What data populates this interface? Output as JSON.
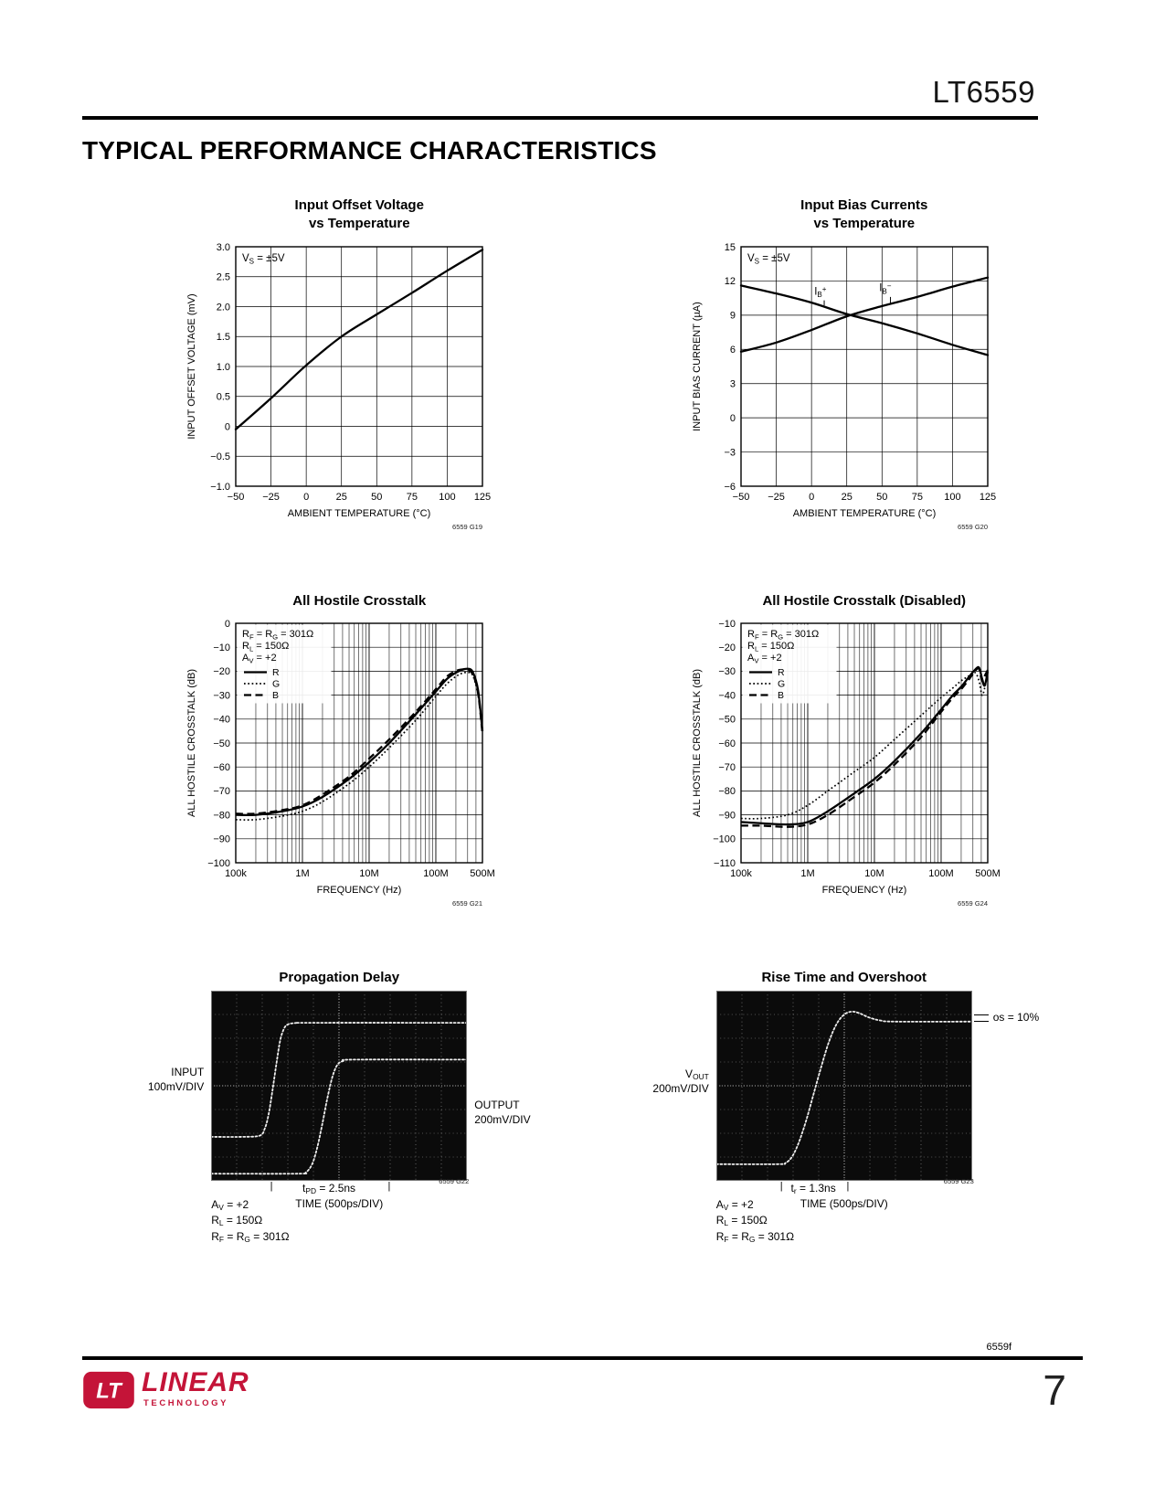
{
  "page": {
    "part_number": "LT6559",
    "section_title": "TYPICAL PERFORMANCE CHARACTERISTICS",
    "footer_doc_code": "6559f",
    "page_number": "7",
    "brand": {
      "mark": "LT",
      "name": "LINEAR",
      "sub": "TECHNOLOGY"
    },
    "colors": {
      "accent_red": "#C41438",
      "ink": "#000000",
      "scope_bg": "#0b0b0b",
      "scope_trace": "#ededed",
      "scope_grid": "#9a9a9a",
      "scope_center": "#cfcfcf"
    }
  },
  "chart_data": [
    {
      "id": "6559 G19",
      "kind": "linear",
      "type": "line",
      "title": "Input Offset Voltage",
      "title2": "vs Temperature",
      "xlabel": "AMBIENT TEMPERATURE (°C)",
      "ylabel": "INPUT OFFSET VOLTAGE (mV)",
      "xlim": [
        -50,
        125
      ],
      "ylim": [
        -1,
        3
      ],
      "xticks": [
        -50,
        -25,
        0,
        25,
        50,
        75,
        100,
        125
      ],
      "xtick_labels": [
        "−50",
        "−25",
        "0",
        "25",
        "50",
        "75",
        "100",
        "125"
      ],
      "yticks": [
        3,
        2.5,
        2,
        1.5,
        1,
        0.5,
        0,
        -0.5,
        -1
      ],
      "ytick_labels": [
        "3.0",
        "2.5",
        "2.0",
        "1.5",
        "1.0",
        "0.5",
        "0",
        "−0.5",
        "−1.0"
      ],
      "annotation": "V~S~ = ±5V",
      "series": [
        {
          "name": "VOS",
          "style": "solid",
          "x": [
            -50,
            -25,
            0,
            25,
            50,
            75,
            100,
            125
          ],
          "y": [
            -0.05,
            0.47,
            1.02,
            1.5,
            1.87,
            2.23,
            2.6,
            2.95
          ]
        }
      ]
    },
    {
      "id": "6559 G20",
      "kind": "linear",
      "type": "line",
      "title": "Input Bias Currents",
      "title2": "vs Temperature",
      "xlabel": "AMBIENT TEMPERATURE (°C)",
      "ylabel": "INPUT BIAS CURRENT (µA)",
      "xlim": [
        -50,
        125
      ],
      "ylim": [
        -6,
        15
      ],
      "xticks": [
        -50,
        -25,
        0,
        25,
        50,
        75,
        100,
        125
      ],
      "xtick_labels": [
        "−50",
        "−25",
        "0",
        "25",
        "50",
        "75",
        "100",
        "125"
      ],
      "yticks": [
        15,
        12,
        9,
        6,
        3,
        0,
        -3,
        -6
      ],
      "ytick_labels": [
        "15",
        "12",
        "9",
        "6",
        "3",
        "0",
        "−3",
        "−6"
      ],
      "annotation": "V~S~ = ±5V",
      "series": [
        {
          "name": "I~B~^+^",
          "style": "solid",
          "x": [
            -50,
            -25,
            0,
            25,
            50,
            75,
            100,
            125
          ],
          "y": [
            11.6,
            10.9,
            10.1,
            9.1,
            8.3,
            7.4,
            6.4,
            5.5
          ]
        },
        {
          "name": "I~B~^−^",
          "style": "solid",
          "x": [
            -50,
            -25,
            0,
            25,
            50,
            75,
            100,
            125
          ],
          "y": [
            5.8,
            6.6,
            7.7,
            8.9,
            9.8,
            10.6,
            11.5,
            12.3
          ]
        }
      ],
      "series_labels": [
        {
          "text": "I~B~^+^",
          "x": 2,
          "y": 10.8,
          "leader": [
            [
              9,
              10.3
            ],
            [
              9,
              9.85
            ]
          ]
        },
        {
          "text": "I~B~^−^",
          "x": 48,
          "y": 11.1,
          "leader": [
            [
              56,
              10.6
            ],
            [
              56,
              10.05
            ]
          ]
        }
      ]
    },
    {
      "id": "6559 G21",
      "kind": "logx",
      "type": "line",
      "title": "All Hostile Crosstalk",
      "xlabel": "FREQUENCY (Hz)",
      "ylabel": "ALL HOSTILE CROSSTALK (dB)",
      "xlim": [
        100000,
        500000000
      ],
      "ylim": [
        -100,
        0
      ],
      "xticks": [
        100000,
        1000000,
        10000000,
        100000000,
        500000000
      ],
      "xtick_labels": [
        "100k",
        "1M",
        "10M",
        "100M",
        "500M"
      ],
      "yticks": [
        0,
        -10,
        -20,
        -30,
        -40,
        -50,
        -60,
        -70,
        -80,
        -90,
        -100
      ],
      "ytick_labels": [
        "0",
        "−10",
        "−20",
        "−30",
        "−40",
        "−50",
        "−60",
        "−70",
        "−80",
        "−90",
        "−100"
      ],
      "annotations": [
        "R~F~ = R~G~ = 301Ω",
        "R~L~ = 150Ω",
        "A~V~ = +2"
      ],
      "legend": [
        {
          "name": "R",
          "style": "solid"
        },
        {
          "name": "G",
          "style": "dotted"
        },
        {
          "name": "B",
          "style": "dashed"
        }
      ],
      "series": [
        {
          "name": "R",
          "style": "solid",
          "points": [
            [
              100000.0,
              -80
            ],
            [
              200000.0,
              -80
            ],
            [
              500000.0,
              -78.5
            ],
            [
              1000000.0,
              -76.5
            ],
            [
              2000000.0,
              -72.5
            ],
            [
              5000000.0,
              -65
            ],
            [
              10000000.0,
              -58
            ],
            [
              20000000.0,
              -50
            ],
            [
              50000000.0,
              -38
            ],
            [
              100000000.0,
              -28.5
            ],
            [
              150000000.0,
              -23
            ],
            [
              220000000.0,
              -20
            ],
            [
              300000000.0,
              -19
            ],
            [
              360000000.0,
              -20.5
            ],
            [
              430000000.0,
              -28
            ],
            [
              500000000.0,
              -45
            ]
          ]
        },
        {
          "name": "G",
          "style": "dotted",
          "points": [
            [
              100000.0,
              -82
            ],
            [
              200000.0,
              -82
            ],
            [
              500000.0,
              -80.5
            ],
            [
              1000000.0,
              -78.5
            ],
            [
              2000000.0,
              -74.5
            ],
            [
              5000000.0,
              -67
            ],
            [
              10000000.0,
              -60
            ],
            [
              20000000.0,
              -52
            ],
            [
              50000000.0,
              -40.5
            ],
            [
              100000000.0,
              -30.5
            ],
            [
              150000000.0,
              -25
            ],
            [
              220000000.0,
              -21.5
            ],
            [
              300000000.0,
              -20.5
            ],
            [
              360000000.0,
              -22
            ],
            [
              430000000.0,
              -30
            ],
            [
              500000000.0,
              -44
            ]
          ]
        },
        {
          "name": "B",
          "style": "dashed",
          "points": [
            [
              100000.0,
              -79.5
            ],
            [
              200000.0,
              -79.5
            ],
            [
              500000.0,
              -78
            ],
            [
              1000000.0,
              -76
            ],
            [
              2000000.0,
              -71.5
            ],
            [
              5000000.0,
              -64
            ],
            [
              10000000.0,
              -56.5
            ],
            [
              20000000.0,
              -48.5
            ],
            [
              50000000.0,
              -37
            ],
            [
              100000000.0,
              -27.5
            ],
            [
              150000000.0,
              -22
            ],
            [
              220000000.0,
              -19.5
            ],
            [
              300000000.0,
              -19.5
            ],
            [
              360000000.0,
              -21.5
            ],
            [
              430000000.0,
              -29
            ],
            [
              500000000.0,
              -46
            ]
          ]
        }
      ]
    },
    {
      "id": "6559 G24",
      "kind": "logx",
      "type": "line",
      "title": "All Hostile Crosstalk (Disabled)",
      "xlabel": "FREQUENCY (Hz)",
      "ylabel": "ALL HOSTILE CROSSTALK (dB)",
      "xlim": [
        100000,
        500000000
      ],
      "ylim": [
        -110,
        -10
      ],
      "xticks": [
        100000,
        1000000,
        10000000,
        100000000,
        500000000
      ],
      "xtick_labels": [
        "100k",
        "1M",
        "10M",
        "100M",
        "500M"
      ],
      "yticks": [
        -10,
        -20,
        -30,
        -40,
        -50,
        -60,
        -70,
        -80,
        -90,
        -100,
        -110
      ],
      "ytick_labels": [
        "−10",
        "−20",
        "−30",
        "−40",
        "−50",
        "−60",
        "−70",
        "−80",
        "−90",
        "−100",
        "−110"
      ],
      "annotations": [
        "R~F~ = R~G~ = 301Ω",
        "R~L~ = 150Ω",
        "A~V~ = +2"
      ],
      "legend": [
        {
          "name": "R",
          "style": "solid"
        },
        {
          "name": "G",
          "style": "dotted"
        },
        {
          "name": "B",
          "style": "dashed"
        }
      ],
      "series": [
        {
          "name": "R",
          "style": "solid",
          "points": [
            [
              100000.0,
              -93
            ],
            [
              200000.0,
              -93.5
            ],
            [
              500000.0,
              -94
            ],
            [
              1000000.0,
              -93
            ],
            [
              2000000.0,
              -88.5
            ],
            [
              5000000.0,
              -81
            ],
            [
              10000000.0,
              -75
            ],
            [
              20000000.0,
              -67.5
            ],
            [
              50000000.0,
              -56
            ],
            [
              100000000.0,
              -46
            ],
            [
              150000000.0,
              -40
            ],
            [
              200000000.0,
              -36.5
            ],
            [
              260000000.0,
              -32.5
            ],
            [
              320000000.0,
              -29.5
            ],
            [
              370000000.0,
              -28.5
            ],
            [
              410000000.0,
              -33
            ],
            [
              450000000.0,
              -36
            ],
            [
              500000000.0,
              -30
            ]
          ]
        },
        {
          "name": "G",
          "style": "dotted",
          "points": [
            [
              100000.0,
              -91.5
            ],
            [
              200000.0,
              -91.5
            ],
            [
              500000.0,
              -90
            ],
            [
              1000000.0,
              -86
            ],
            [
              2000000.0,
              -80
            ],
            [
              5000000.0,
              -72
            ],
            [
              10000000.0,
              -66
            ],
            [
              20000000.0,
              -58.5
            ],
            [
              50000000.0,
              -48.5
            ],
            [
              100000000.0,
              -41
            ],
            [
              150000000.0,
              -37
            ],
            [
              200000000.0,
              -34
            ],
            [
              260000000.0,
              -32
            ],
            [
              320000000.0,
              -30.5
            ],
            [
              370000000.0,
              -34
            ],
            [
              410000000.0,
              -40
            ],
            [
              450000000.0,
              -37
            ],
            [
              500000000.0,
              -31
            ]
          ]
        },
        {
          "name": "B",
          "style": "dashed",
          "points": [
            [
              100000.0,
              -94.5
            ],
            [
              200000.0,
              -94.5
            ],
            [
              500000.0,
              -95
            ],
            [
              1000000.0,
              -94
            ],
            [
              2000000.0,
              -90
            ],
            [
              5000000.0,
              -82.5
            ],
            [
              10000000.0,
              -76.5
            ],
            [
              20000000.0,
              -69
            ],
            [
              50000000.0,
              -57.5
            ],
            [
              100000000.0,
              -47
            ],
            [
              150000000.0,
              -41
            ],
            [
              200000000.0,
              -37.5
            ],
            [
              260000000.0,
              -33.5
            ],
            [
              320000000.0,
              -30
            ],
            [
              370000000.0,
              -29
            ],
            [
              410000000.0,
              -34
            ],
            [
              450000000.0,
              -32
            ],
            [
              500000000.0,
              -29.5
            ]
          ]
        }
      ]
    },
    {
      "id": "6559 G22",
      "kind": "scope",
      "type": "line",
      "title": "Propagation Delay",
      "divisions": [
        10,
        8
      ],
      "left_label": [
        "INPUT",
        "100mV/DIV"
      ],
      "right_label": [
        "OUTPUT",
        "200mV/DIV"
      ],
      "marker_glyph": "|",
      "marker_label": "t~PD~ = 2.5ns",
      "marker_divs": [
        2.3,
        6.9
      ],
      "time_label": "TIME (500ps/DIV)",
      "conditions": [
        "A~V~ = +2",
        "R~L~ = 150Ω",
        "R~F~ = R~G~ = 301Ω"
      ],
      "traces": [
        {
          "name": "input",
          "points": [
            [
              0,
              6.15
            ],
            [
              1.2,
              6.15
            ],
            [
              1.9,
              6.1
            ],
            [
              2.1,
              5.8
            ],
            [
              2.25,
              5.2
            ],
            [
              2.4,
              4.2
            ],
            [
              2.55,
              3.1
            ],
            [
              2.7,
              2.1
            ],
            [
              2.85,
              1.6
            ],
            [
              3.0,
              1.42
            ],
            [
              3.3,
              1.36
            ],
            [
              4,
              1.35
            ],
            [
              10,
              1.35
            ]
          ]
        },
        {
          "name": "output",
          "points": [
            [
              0,
              7.7
            ],
            [
              3.4,
              7.7
            ],
            [
              3.7,
              7.65
            ],
            [
              3.95,
              7.3
            ],
            [
              4.15,
              6.6
            ],
            [
              4.35,
              5.6
            ],
            [
              4.55,
              4.5
            ],
            [
              4.75,
              3.6
            ],
            [
              4.95,
              3.1
            ],
            [
              5.2,
              2.95
            ],
            [
              5.6,
              2.9
            ],
            [
              10,
              2.9
            ]
          ]
        }
      ]
    },
    {
      "id": "6559 G23",
      "kind": "scope",
      "type": "line",
      "title": "Rise Time and Overshoot",
      "divisions": [
        10,
        8
      ],
      "left_label": [
        "V~OUT~",
        "200mV/DIV"
      ],
      "os_label": "os = 10%",
      "marker_glyph": "|",
      "marker_label": "t~r~ = 1.3ns",
      "marker_divs": [
        2.5,
        5.1
      ],
      "time_label": "TIME (500ps/DIV)",
      "conditions": [
        "A~V~ = +2",
        "R~L~ = 150Ω",
        "R~F~ = R~G~ = 301Ω"
      ],
      "traces": [
        {
          "name": "vout",
          "points": [
            [
              0,
              7.3
            ],
            [
              2.4,
              7.3
            ],
            [
              2.7,
              7.25
            ],
            [
              2.95,
              7.0
            ],
            [
              3.2,
              6.45
            ],
            [
              3.5,
              5.5
            ],
            [
              3.8,
              4.35
            ],
            [
              4.1,
              3.2
            ],
            [
              4.4,
              2.15
            ],
            [
              4.7,
              1.4
            ],
            [
              5.0,
              1.0
            ],
            [
              5.3,
              0.88
            ],
            [
              5.6,
              0.95
            ],
            [
              5.95,
              1.12
            ],
            [
              6.4,
              1.25
            ],
            [
              7,
              1.3
            ],
            [
              10,
              1.3
            ]
          ]
        }
      ]
    }
  ]
}
